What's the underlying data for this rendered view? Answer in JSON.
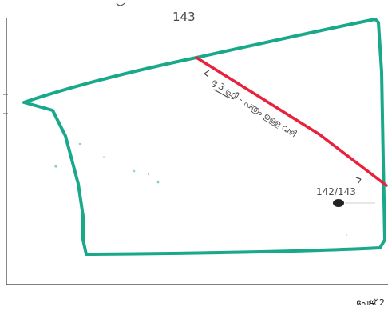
{
  "sketch": {
    "plot_number": "143",
    "boundary_note": "ദ്ദ 3 ഫ്രീ - പത്രം ഉള്ള വഴി",
    "adjacent_plot": "142/143",
    "footer_text": "പേജ് 2"
  },
  "colors": {
    "parcel_boundary": "#1aa88a",
    "road_boundary": "#e8213d",
    "frame": "#555555",
    "handwriting": "#4a4a4a"
  }
}
